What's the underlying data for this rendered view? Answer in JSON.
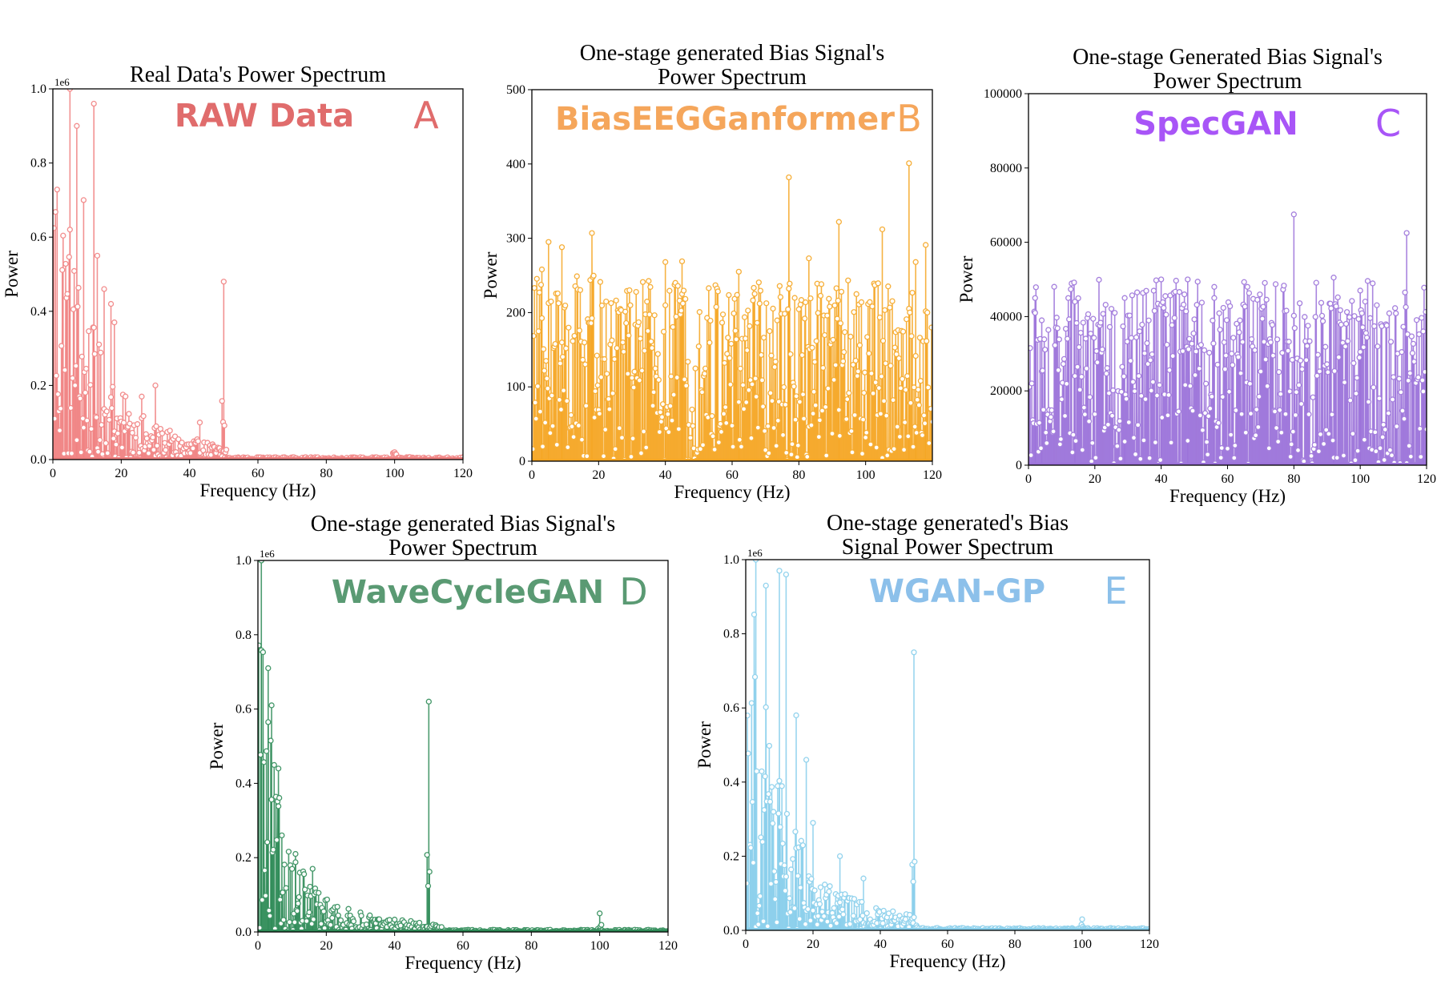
{
  "chart_data": [
    {
      "id": "A",
      "type": "stem",
      "title": [
        "Real Data's Power Spectrum"
      ],
      "xlabel": "Frequency (Hz)",
      "ylabel": "Power",
      "xlim": [
        0,
        120
      ],
      "ylim": [
        0,
        1.0
      ],
      "xticks": [
        "0",
        "20",
        "40",
        "60",
        "80",
        "100",
        "120"
      ],
      "yticks": [
        "0.0",
        "0.2",
        "0.4",
        "0.6",
        "0.8",
        "1.0"
      ],
      "y_exponent_label": "1e6",
      "model_label": "RAW Data",
      "panel_letter": "A",
      "color": "#f08080",
      "label_color": "#e06c6c",
      "profile": "decay",
      "series_x_step": 0.25,
      "peaks": [
        {
          "x": 5,
          "y": 1.0
        },
        {
          "x": 7,
          "y": 0.9
        },
        {
          "x": 9,
          "y": 0.7
        },
        {
          "x": 12,
          "y": 0.96
        },
        {
          "x": 13,
          "y": 0.55
        },
        {
          "x": 15,
          "y": 0.46
        },
        {
          "x": 17,
          "y": 0.42
        },
        {
          "x": 18,
          "y": 0.37
        },
        {
          "x": 26,
          "y": 0.17
        },
        {
          "x": 30,
          "y": 0.2
        },
        {
          "x": 43,
          "y": 0.1
        },
        {
          "x": 50,
          "y": 0.48
        },
        {
          "x": 100,
          "y": 0.02
        }
      ]
    },
    {
      "id": "B",
      "type": "stem",
      "title": [
        "One-stage generated Bias Signal's",
        "Power Spectrum"
      ],
      "xlabel": "Frequency (Hz)",
      "ylabel": "Power",
      "xlim": [
        0,
        120
      ],
      "ylim": [
        0,
        500
      ],
      "xticks": [
        "0",
        "20",
        "40",
        "60",
        "80",
        "100",
        "120"
      ],
      "yticks": [
        "0",
        "100",
        "200",
        "300",
        "400",
        "500"
      ],
      "y_exponent_label": "",
      "model_label": "BiasEEGGanformer",
      "panel_letter": "B",
      "color": "#f5a623",
      "label_color": "#f5a65b",
      "profile": "flat",
      "series_x_step": 0.25,
      "peaks": [
        {
          "x": 3,
          "y": 258
        },
        {
          "x": 5,
          "y": 295
        },
        {
          "x": 9,
          "y": 288
        },
        {
          "x": 18,
          "y": 307
        },
        {
          "x": 40,
          "y": 268
        },
        {
          "x": 45,
          "y": 269
        },
        {
          "x": 62,
          "y": 255
        },
        {
          "x": 77,
          "y": 382
        },
        {
          "x": 83,
          "y": 273
        },
        {
          "x": 92,
          "y": 322
        },
        {
          "x": 105,
          "y": 312
        },
        {
          "x": 113,
          "y": 401
        },
        {
          "x": 115,
          "y": 268
        },
        {
          "x": 118,
          "y": 291
        }
      ]
    },
    {
      "id": "C",
      "type": "stem",
      "title": [
        "One-stage Generated Bias Signal's",
        "Power Spectrum"
      ],
      "xlabel": "Frequency (Hz)",
      "ylabel": "Power",
      "xlim": [
        0,
        120
      ],
      "ylim": [
        0,
        100000
      ],
      "xticks": [
        "0",
        "20",
        "40",
        "60",
        "80",
        "100",
        "120"
      ],
      "yticks": [
        "0",
        "20000",
        "40000",
        "60000",
        "80000",
        "100000"
      ],
      "y_exponent_label": "",
      "model_label": "SpecGAN",
      "panel_letter": "C",
      "color": "#9b72d9",
      "label_color": "#a855f7",
      "profile": "flat",
      "series_x_step": 0.25,
      "peaks": [
        {
          "x": 2,
          "y": 41000
        },
        {
          "x": 4,
          "y": 39000
        },
        {
          "x": 14,
          "y": 44000
        },
        {
          "x": 29,
          "y": 45000
        },
        {
          "x": 40,
          "y": 50000
        },
        {
          "x": 48,
          "y": 50000
        },
        {
          "x": 56,
          "y": 45000
        },
        {
          "x": 80,
          "y": 67500
        },
        {
          "x": 92,
          "y": 50500
        },
        {
          "x": 100,
          "y": 47000
        },
        {
          "x": 114,
          "y": 62500
        },
        {
          "x": 119,
          "y": 36000
        }
      ]
    },
    {
      "id": "D",
      "type": "stem",
      "title": [
        "One-stage generated Bias Signal's",
        "Power Spectrum"
      ],
      "xlabel": "Frequency (Hz)",
      "ylabel": "Power",
      "xlim": [
        0,
        120
      ],
      "ylim": [
        0,
        1.0
      ],
      "xticks": [
        "0",
        "20",
        "40",
        "60",
        "80",
        "100",
        "120"
      ],
      "yticks": [
        "0.0",
        "0.2",
        "0.4",
        "0.6",
        "0.8",
        "1.0"
      ],
      "y_exponent_label": "1e6",
      "model_label": "WaveCycleGAN",
      "panel_letter": "D",
      "color": "#2e8b57",
      "label_color": "#5a9a73",
      "profile": "decay_fast",
      "series_x_step": 0.25,
      "peaks": [
        {
          "x": 1,
          "y": 1.0
        },
        {
          "x": 3,
          "y": 0.71
        },
        {
          "x": 4,
          "y": 0.61
        },
        {
          "x": 6,
          "y": 0.44
        },
        {
          "x": 7,
          "y": 0.26
        },
        {
          "x": 11,
          "y": 0.21
        },
        {
          "x": 16,
          "y": 0.17
        },
        {
          "x": 50,
          "y": 0.62
        },
        {
          "x": 100,
          "y": 0.05
        }
      ]
    },
    {
      "id": "E",
      "type": "stem",
      "title": [
        "One-stage generated's Bias",
        "Signal Power Spectrum"
      ],
      "xlabel": "Frequency (Hz)",
      "ylabel": "Power",
      "xlim": [
        0,
        120
      ],
      "ylim": [
        0,
        1.0
      ],
      "xticks": [
        "0",
        "20",
        "40",
        "60",
        "80",
        "100",
        "120"
      ],
      "yticks": [
        "0.0",
        "0.2",
        "0.4",
        "0.6",
        "0.8",
        "1.0"
      ],
      "y_exponent_label": "1e6",
      "model_label": "WGAN-GP",
      "panel_letter": "E",
      "color": "#87ceeb",
      "label_color": "#8cc0ea",
      "profile": "decay",
      "series_x_step": 0.25,
      "peaks": [
        {
          "x": 3,
          "y": 1.0
        },
        {
          "x": 6,
          "y": 0.93
        },
        {
          "x": 10,
          "y": 0.97
        },
        {
          "x": 12,
          "y": 0.96
        },
        {
          "x": 15,
          "y": 0.58
        },
        {
          "x": 18,
          "y": 0.46
        },
        {
          "x": 20,
          "y": 0.29
        },
        {
          "x": 28,
          "y": 0.2
        },
        {
          "x": 35,
          "y": 0.14
        },
        {
          "x": 50,
          "y": 0.75
        },
        {
          "x": 100,
          "y": 0.03
        }
      ]
    }
  ]
}
